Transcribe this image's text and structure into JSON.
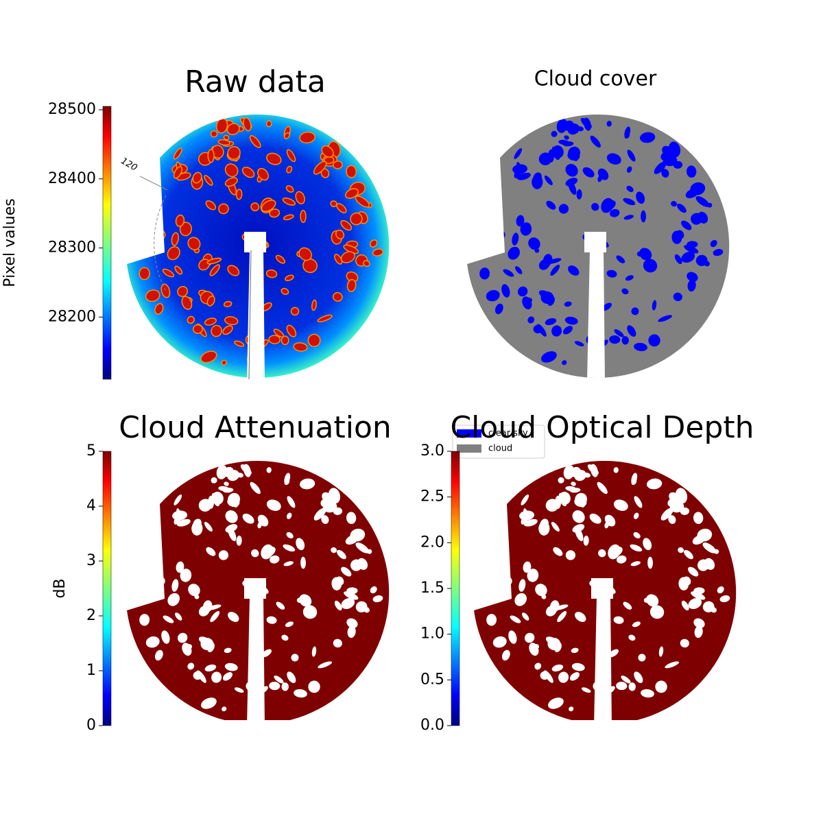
{
  "chart_data": [
    {
      "type": "image",
      "title": "Raw data",
      "colormap": "jet",
      "ylabel": "Pixel values",
      "ylim": [
        28110,
        28505
      ],
      "yticks": [
        28200,
        28300,
        28400,
        28500
      ],
      "annotations": [
        "120"
      ]
    },
    {
      "type": "image",
      "title": "Cloud cover",
      "series": [
        {
          "name": "clear sky",
          "color": "#0000ff"
        },
        {
          "name": "cloud",
          "color": "#808080"
        }
      ]
    },
    {
      "type": "image",
      "title": "Cloud Attenuation",
      "colormap": "jet",
      "ylabel": "dB",
      "ylim": [
        0,
        5
      ],
      "yticks": [
        0,
        1,
        2,
        3,
        4,
        5
      ]
    },
    {
      "type": "image",
      "title": "Cloud Optical Depth",
      "colormap": "jet",
      "ylim": [
        0,
        3
      ],
      "yticks": [
        {
          "value": 0,
          "label": "0.0"
        },
        {
          "value": 0.5,
          "label": "0.5"
        },
        {
          "value": 1,
          "label": "1.0"
        },
        {
          "value": 1.5,
          "label": "1.5"
        },
        {
          "value": 2,
          "label": "2.0"
        },
        {
          "value": 2.5,
          "label": "2.5"
        },
        {
          "value": 3,
          "label": "3.0"
        }
      ]
    }
  ]
}
